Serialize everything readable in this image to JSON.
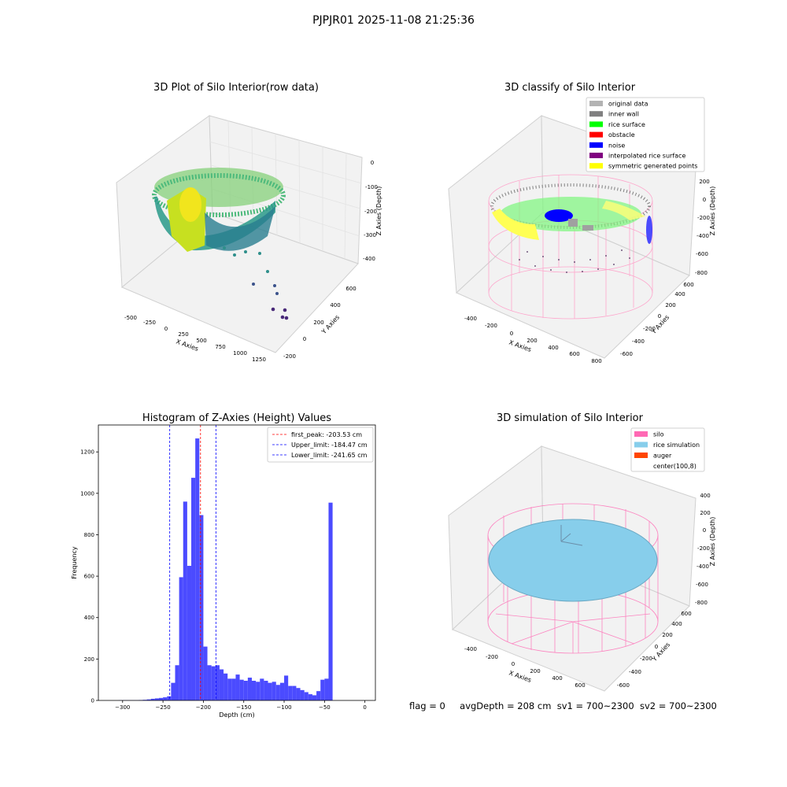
{
  "suptitle": "PJPJR01 2025-11-08 21:25:36",
  "panels": {
    "raw": {
      "title": "3D Plot of Silo Interior(row data)",
      "xlabel": "X Axies",
      "ylabel": "Y Axies",
      "zlabel": "Z Axies (Depth)",
      "xticks": [
        "-500",
        "-250",
        "0",
        "250",
        "500",
        "750",
        "1000",
        "1250"
      ],
      "yticks": [
        "-200",
        "0",
        "200",
        "400",
        "600"
      ],
      "zticks": [
        "0",
        "-100",
        "-200",
        "-300",
        "-400"
      ]
    },
    "classify": {
      "title": "3D classify of Silo Interior",
      "xlabel": "X Axies",
      "ylabel": "Y Axies",
      "zlabel": "Z Axies (Depth)",
      "xticks": [
        "-400",
        "-200",
        "0",
        "200",
        "400",
        "600",
        "800"
      ],
      "yticks": [
        "-600",
        "-400",
        "-200",
        "0",
        "200",
        "400",
        "600"
      ],
      "zticks": [
        "200",
        "0",
        "-200",
        "-400",
        "-600",
        "-800"
      ],
      "legend": [
        {
          "label": "original data",
          "color": "#b3b3b3"
        },
        {
          "label": "inner wall",
          "color": "#808080"
        },
        {
          "label": "rice surface",
          "color": "#00ff00"
        },
        {
          "label": "obstacle",
          "color": "#ff0000"
        },
        {
          "label": "noise",
          "color": "#0000ff"
        },
        {
          "label": "interpolated rice surface",
          "color": "#800080"
        },
        {
          "label": "symmetric generated points",
          "color": "#ffff00"
        }
      ]
    },
    "simulation": {
      "title": "3D simulation of Silo Interior",
      "xlabel": "X Axies",
      "ylabel": "Y Axies",
      "zlabel": "Z Axies (Depth)",
      "xticks": [
        "-400",
        "-200",
        "0",
        "200",
        "400",
        "600"
      ],
      "yticks": [
        "-600",
        "-400",
        "-200",
        "0",
        "200",
        "400",
        "600"
      ],
      "zticks": [
        "400",
        "200",
        "0",
        "-200",
        "-400",
        "-600",
        "-800"
      ],
      "legend": [
        {
          "label": "silo",
          "color": "#ff69b4"
        },
        {
          "label": "rice simulation",
          "color": "#87ceeb"
        },
        {
          "label": "auger",
          "color": "#ff4500"
        },
        {
          "label": "center(100,8)",
          "color": "#ffffff"
        }
      ]
    }
  },
  "chart_data": {
    "type": "bar",
    "title": "Histogram of Z-Axies (Height) Values",
    "xlabel": "Depth (cm)",
    "ylabel": "Frequency",
    "xlim": [
      -330,
      13
    ],
    "ylim": [
      0,
      1330
    ],
    "bin_width": 5,
    "bin_starts": [
      -305,
      -300,
      -295,
      -290,
      -285,
      -280,
      -275,
      -270,
      -265,
      -260,
      -255,
      -250,
      -245,
      -240,
      -235,
      -230,
      -225,
      -220,
      -215,
      -210,
      -205,
      -200,
      -195,
      -190,
      -185,
      -180,
      -175,
      -170,
      -165,
      -160,
      -155,
      -150,
      -145,
      -140,
      -135,
      -130,
      -125,
      -120,
      -115,
      -110,
      -105,
      -100,
      -95,
      -90,
      -85,
      -80,
      -75,
      -70,
      -65,
      -60,
      -55,
      -50,
      -45,
      -40,
      -35,
      -30,
      -25,
      -20,
      -15,
      -10,
      -5
    ],
    "values": [
      1,
      1,
      1,
      1,
      1,
      2,
      3,
      5,
      8,
      10,
      12,
      15,
      20,
      85,
      170,
      595,
      960,
      650,
      1075,
      1265,
      895,
      260,
      170,
      165,
      170,
      150,
      130,
      105,
      105,
      125,
      100,
      95,
      110,
      95,
      90,
      105,
      95,
      85,
      90,
      75,
      85,
      120,
      70,
      70,
      60,
      50,
      40,
      30,
      25,
      45,
      100,
      105,
      955,
      0,
      0,
      0,
      0,
      0,
      0,
      0,
      0
    ],
    "vlines": [
      {
        "label": "first_peak: -203.53 cm",
        "x": -203.53,
        "color": "#ff0000"
      },
      {
        "label": "Upper_limit: -184.47 cm",
        "x": -184.47,
        "color": "#0000ff"
      },
      {
        "label": "Lower_limit: -241.65 cm",
        "x": -241.65,
        "color": "#0000ff"
      }
    ],
    "xticks": [
      -300,
      -250,
      -200,
      -150,
      -100,
      -50,
      0
    ],
    "yticks": [
      0,
      200,
      400,
      600,
      800,
      1000,
      1200
    ],
    "bar_color": "#4b4bff"
  },
  "status": {
    "flag": "flag = 0",
    "avg_depth": "avgDepth = 208 cm",
    "sv1": "sv1 = 700~2300",
    "sv2": "sv2 = 700~2300"
  }
}
